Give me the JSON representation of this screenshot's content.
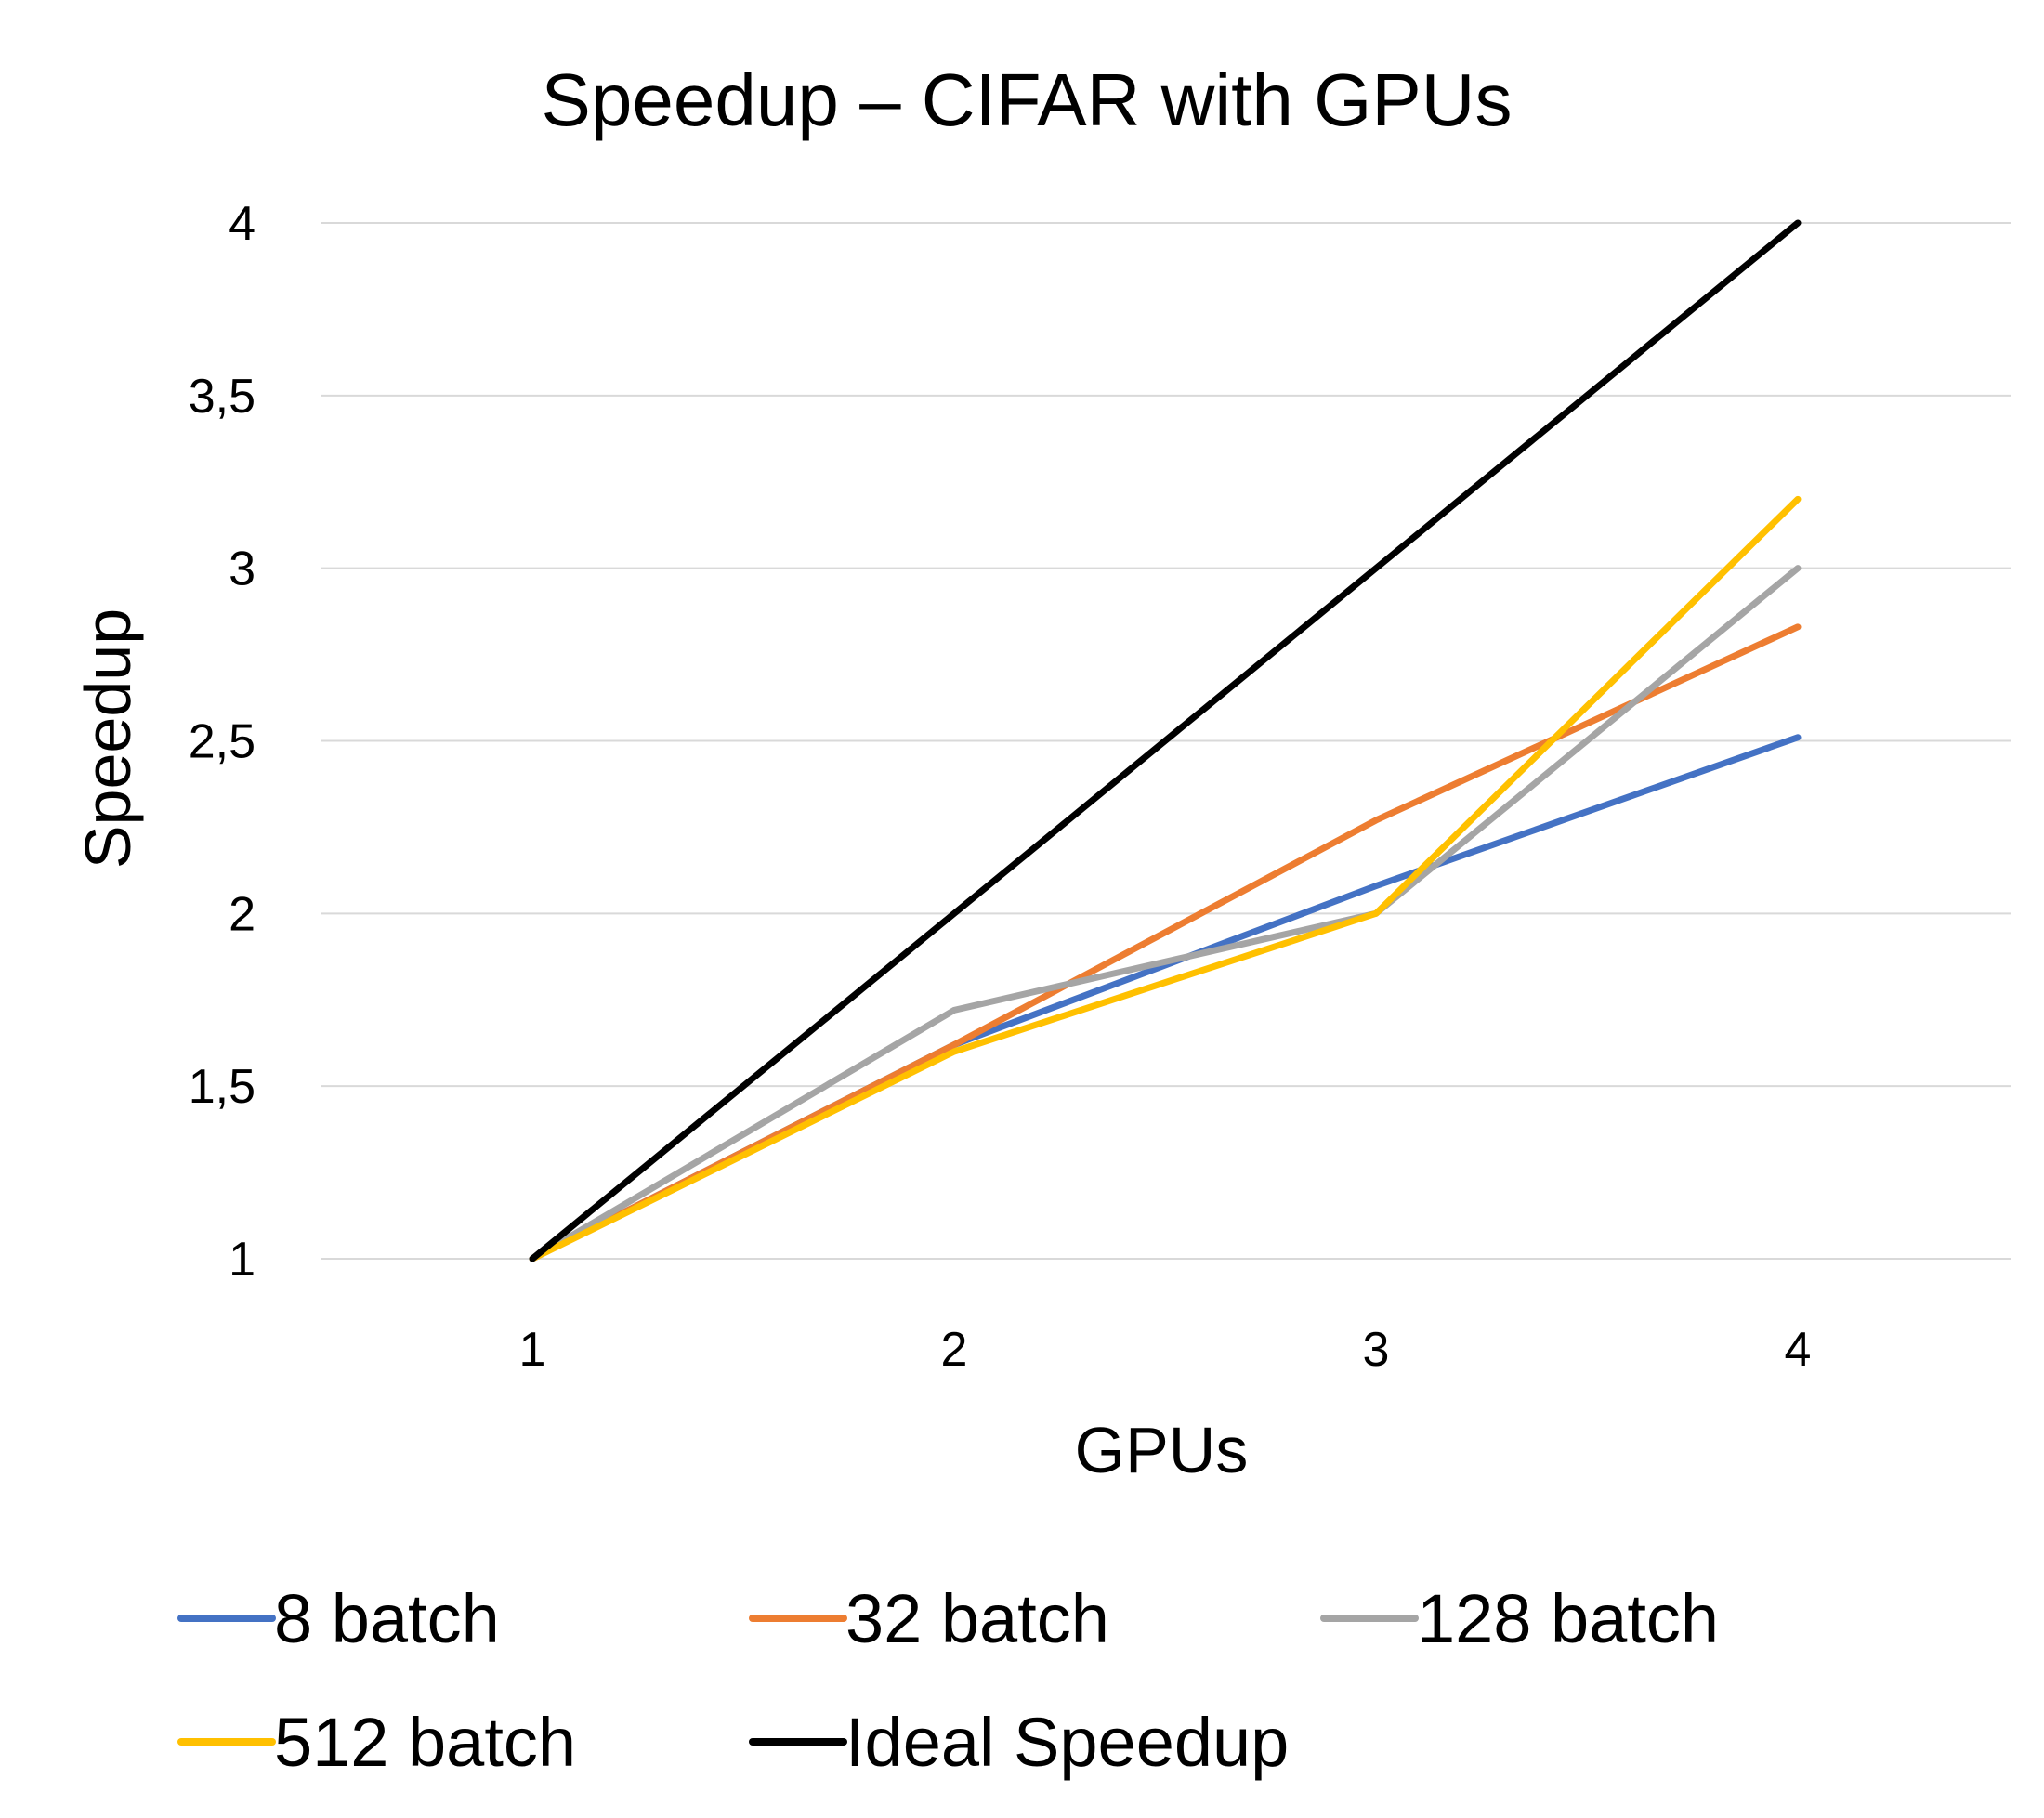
{
  "chart_data": {
    "type": "line",
    "title": "Speedup – CIFAR with GPUs",
    "xlabel": "GPUs",
    "ylabel": "Speedup",
    "x": [
      "1",
      "2",
      "3",
      "4"
    ],
    "ylim": [
      1,
      4
    ],
    "yticks": [
      "1",
      "1,5",
      "2",
      "2,5",
      "3",
      "3,5",
      "4"
    ],
    "grid": true,
    "legend_position": "bottom",
    "series": [
      {
        "name": "8 batch",
        "color": "#4472c4",
        "values": [
          1,
          1.62,
          2.08,
          2.51
        ]
      },
      {
        "name": "32 batch",
        "color": "#ed7d31",
        "values": [
          1,
          1.62,
          2.27,
          2.83
        ]
      },
      {
        "name": "128 batch",
        "color": "#a5a5a5",
        "values": [
          1,
          1.72,
          2.0,
          3.0
        ]
      },
      {
        "name": "512 batch",
        "color": "#ffc000",
        "values": [
          1,
          1.6,
          2.0,
          3.2
        ]
      },
      {
        "name": "Ideal Speedup",
        "color": "#000000",
        "values": [
          1,
          2,
          3,
          4
        ]
      }
    ]
  }
}
